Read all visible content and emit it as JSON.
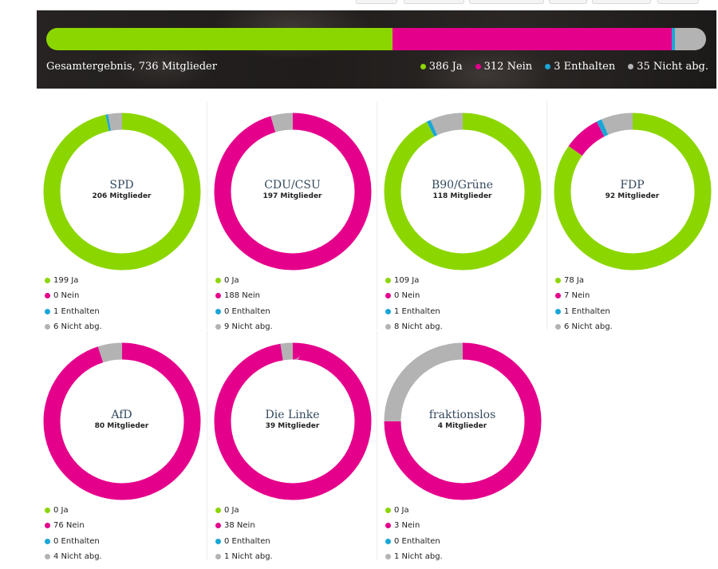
{
  "colors": {
    "ja": "#8cd600",
    "nein": "#e5008c",
    "enthalten": "#1aa6d6",
    "nicht_abg": "#b3b3b3"
  },
  "summary": {
    "caption": "Gesamtergebnis, 736 Mitglieder",
    "legend": [
      {
        "key": "ja",
        "label": "386 Ja"
      },
      {
        "key": "nein",
        "label": "312 Nein"
      },
      {
        "key": "enthalten",
        "label": "3 Enthalten"
      },
      {
        "key": "nicht_abg",
        "label": "35 Nicht abg."
      }
    ]
  },
  "chart_data": [
    {
      "type": "bar",
      "title": "Gesamtergebnis, 736 Mitglieder",
      "categories": [
        "Ja",
        "Nein",
        "Enthalten",
        "Nicht abg."
      ],
      "values": [
        386,
        312,
        3,
        35
      ]
    },
    {
      "type": "pie",
      "parties": [
        {
          "name": "SPD",
          "members": "206 Mitglieder",
          "values": [
            199,
            0,
            1,
            6
          ],
          "labels": [
            "199 Ja",
            "0 Nein",
            "1 Enthalten",
            "6 Nicht abg."
          ]
        },
        {
          "name": "CDU/CSU",
          "members": "197 Mitglieder",
          "values": [
            0,
            188,
            0,
            9
          ],
          "labels": [
            "0 Ja",
            "188 Nein",
            "0 Enthalten",
            "9 Nicht abg."
          ]
        },
        {
          "name": "B90/Grüne",
          "members": "118 Mitglieder",
          "values": [
            109,
            0,
            1,
            8
          ],
          "labels": [
            "109 Ja",
            "0 Nein",
            "1 Enthalten",
            "8 Nicht abg."
          ]
        },
        {
          "name": "FDP",
          "members": "92 Mitglieder",
          "values": [
            78,
            7,
            1,
            6
          ],
          "labels": [
            "78 Ja",
            "7 Nein",
            "1 Enthalten",
            "6 Nicht abg."
          ]
        },
        {
          "name": "AfD",
          "members": "80 Mitglieder",
          "values": [
            0,
            76,
            0,
            4
          ],
          "labels": [
            "0 Ja",
            "76 Nein",
            "0 Enthalten",
            "4 Nicht abg."
          ]
        },
        {
          "name": "Die Linke",
          "members": "39 Mitglieder",
          "values": [
            0,
            38,
            0,
            1
          ],
          "labels": [
            "0 Ja",
            "38 Nein",
            "0 Enthalten",
            "1 Nicht abg."
          ]
        },
        {
          "name": "fraktionslos",
          "members": "4 Mitglieder",
          "values": [
            0,
            3,
            0,
            1
          ],
          "labels": [
            "0 Ja",
            "3 Nein",
            "0 Enthalten",
            "1 Nicht abg."
          ]
        }
      ]
    }
  ]
}
